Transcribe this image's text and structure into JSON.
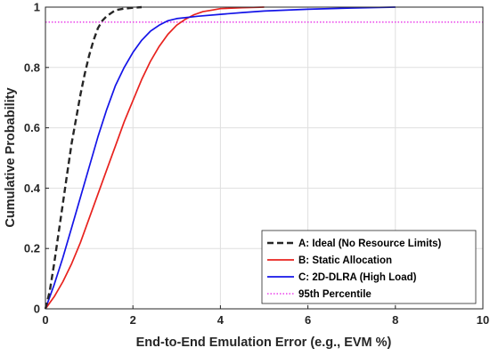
{
  "chart_data": {
    "type": "line",
    "title": "",
    "xlabel": "End-to-End Emulation Error (e.g., EVM %)",
    "ylabel": "Cumulative Probability",
    "xlim": [
      0,
      10
    ],
    "ylim": [
      0,
      1
    ],
    "xticks": [
      "0",
      "2",
      "4",
      "6",
      "8",
      "10"
    ],
    "yticks": [
      "0",
      "0.2",
      "0.4",
      "0.6",
      "0.8",
      "1"
    ],
    "grid": true,
    "legend_position": "bottom-right",
    "series": [
      {
        "name": "A: Ideal (No Resource Limits)",
        "color": "#262626",
        "style": "dashed",
        "x": [
          0,
          0.05,
          0.1,
          0.2,
          0.3,
          0.4,
          0.5,
          0.6,
          0.7,
          0.8,
          0.9,
          1.0,
          1.1,
          1.2,
          1.3,
          1.4,
          1.5,
          1.6,
          1.8,
          2.0,
          2.2
        ],
        "y": [
          0,
          0.03,
          0.06,
          0.15,
          0.25,
          0.35,
          0.45,
          0.55,
          0.63,
          0.71,
          0.78,
          0.84,
          0.89,
          0.93,
          0.955,
          0.97,
          0.98,
          0.99,
          0.995,
          0.998,
          1.0
        ]
      },
      {
        "name": "B: Static Allocation",
        "color": "#e8221e",
        "style": "solid",
        "x": [
          0,
          0.2,
          0.4,
          0.6,
          0.8,
          1.0,
          1.2,
          1.4,
          1.6,
          1.8,
          2.0,
          2.2,
          2.4,
          2.6,
          2.8,
          3.0,
          3.2,
          3.4,
          3.6,
          3.8,
          4.0,
          4.5,
          5.0
        ],
        "y": [
          0,
          0.04,
          0.09,
          0.15,
          0.22,
          0.3,
          0.38,
          0.46,
          0.54,
          0.62,
          0.69,
          0.76,
          0.82,
          0.87,
          0.91,
          0.94,
          0.96,
          0.975,
          0.985,
          0.99,
          0.995,
          0.998,
          1.0
        ]
      },
      {
        "name": "C: 2D-DLRA (High Load)",
        "color": "#1414e8",
        "style": "solid",
        "x": [
          0,
          0.2,
          0.4,
          0.6,
          0.8,
          1.0,
          1.2,
          1.4,
          1.6,
          1.8,
          2.0,
          2.2,
          2.4,
          2.6,
          2.8,
          3.0,
          3.5,
          4.0,
          4.5,
          5.0,
          6.0,
          7.0,
          8.0
        ],
        "y": [
          0,
          0.08,
          0.17,
          0.27,
          0.37,
          0.47,
          0.57,
          0.66,
          0.74,
          0.8,
          0.85,
          0.89,
          0.92,
          0.94,
          0.955,
          0.962,
          0.97,
          0.976,
          0.982,
          0.987,
          0.993,
          0.997,
          1.0
        ]
      },
      {
        "name": "95th Percentile",
        "color": "#e619e6",
        "style": "dotted",
        "x": [
          0,
          10
        ],
        "y": [
          0.95,
          0.95
        ]
      }
    ]
  }
}
